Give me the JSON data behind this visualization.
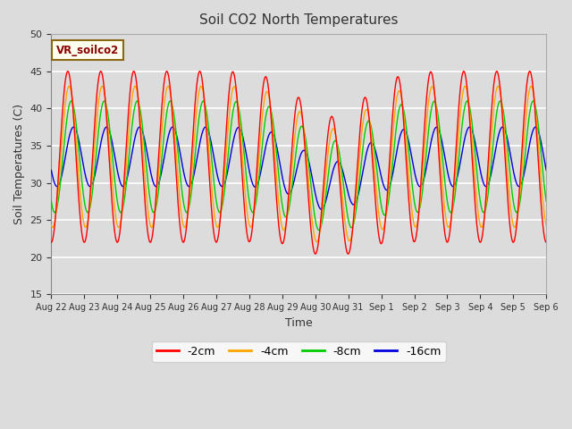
{
  "title": "Soil CO2 North Temperatures",
  "xlabel": "Time",
  "ylabel": "Soil Temperatures (C)",
  "ylim": [
    15,
    50
  ],
  "annotation_text": "VR_soilco2",
  "colors": {
    "neg2cm": "#FF0000",
    "neg4cm": "#FFA500",
    "neg8cm": "#00CC00",
    "neg16cm": "#0000DD"
  },
  "legend_labels": [
    "-2cm",
    "-4cm",
    "-8cm",
    "-16cm"
  ],
  "xtick_labels": [
    "Aug 22",
    "Aug 23",
    "Aug 24",
    "Aug 25",
    "Aug 26",
    "Aug 27",
    "Aug 28",
    "Aug 29",
    "Aug 30",
    "Aug 31",
    "Sep 1",
    "Sep 2",
    "Sep 3",
    "Sep 4",
    "Sep 5",
    "Sep 6"
  ],
  "background_color": "#DCDCDC",
  "n_points": 3000,
  "start_day": 0,
  "end_day": 15,
  "mean_temp": 33.5,
  "amp_2cm": 11.5,
  "amp_4cm": 9.5,
  "amp_8cm": 7.5,
  "amp_16cm": 4.0,
  "phase_2cm": 0.0,
  "phase_4cm": 0.25,
  "phase_8cm": 0.65,
  "phase_16cm": 1.1,
  "period": 1.0,
  "figwidth": 6.4,
  "figheight": 4.8,
  "dpi": 100
}
